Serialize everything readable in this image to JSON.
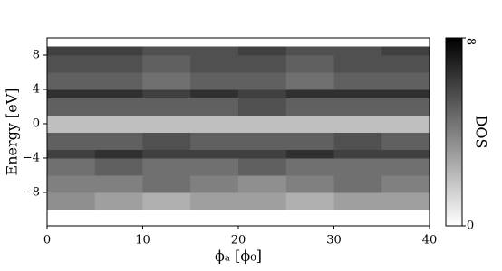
{
  "chart_data": {
    "type": "heatmap",
    "x_label": "ϕₐ [ϕ₀]",
    "y_label": "Energy [eV]",
    "colorbar_label": "DOS",
    "xlim": [
      0,
      40
    ],
    "ylim": [
      -11.9,
      10
    ],
    "xticks": [
      0,
      10,
      20,
      30,
      40
    ],
    "yticks": [
      {
        "value": -8,
        "label": "−8"
      },
      {
        "value": -4,
        "label": "−4"
      },
      0,
      4,
      8
    ],
    "clim": [
      0,
      8
    ],
    "cticks": [
      0,
      8
    ],
    "colormap": "gray_r",
    "xbins": [
      0,
      5,
      10,
      15,
      20,
      25,
      30,
      35,
      40
    ],
    "ybins": [
      -10,
      -8,
      -6,
      -4,
      -3,
      -1,
      1,
      3,
      4,
      6,
      8,
      9
    ],
    "z": [
      [
        3.5,
        3,
        2.5,
        3,
        3,
        2.5,
        3,
        3
      ],
      [
        4,
        4,
        4.5,
        4,
        3.5,
        4,
        4.5,
        4
      ],
      [
        4.5,
        5,
        4.5,
        4.5,
        5,
        4.5,
        4.5,
        4.5
      ],
      [
        6,
        6.5,
        6,
        6,
        6,
        6.5,
        6,
        6
      ],
      [
        5,
        5,
        5.5,
        5,
        5,
        5,
        5.5,
        5
      ],
      [
        2,
        2,
        2,
        2,
        2,
        2,
        2,
        2
      ],
      [
        5,
        5,
        5,
        5,
        5.5,
        5,
        5,
        5
      ],
      [
        6.5,
        6.5,
        6,
        6.5,
        6,
        6.5,
        6.5,
        6.5
      ],
      [
        5,
        5,
        4.5,
        5,
        5,
        4.5,
        5,
        5
      ],
      [
        5.5,
        5.5,
        5,
        5.5,
        5.5,
        5,
        5.5,
        5.5
      ],
      [
        6,
        6,
        5.5,
        5.5,
        6,
        5.5,
        5.5,
        6
      ]
    ]
  }
}
